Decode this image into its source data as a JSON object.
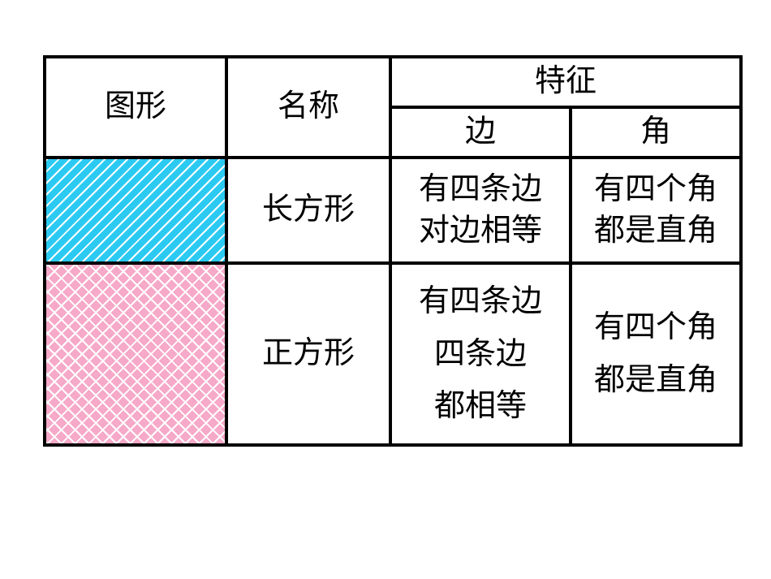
{
  "colors": {
    "rect_bg": "#2bcaf2",
    "sq_bg": "#f6a9c8",
    "border": "#000000",
    "text": "#000000",
    "page_bg": "#ffffff"
  },
  "headers": {
    "shape": "图形",
    "name": "名称",
    "feature": "特征",
    "edge": "边",
    "angle": "角"
  },
  "rows": [
    {
      "kind": "rectangle",
      "name": "长方形",
      "edge": "有四条边\n对边相等",
      "angle": "有四个角\n都是直角"
    },
    {
      "kind": "square",
      "name": "正方形",
      "edge": "有四条边\n四条边\n都相等",
      "angle": "有四个角\n都是直角"
    }
  ]
}
